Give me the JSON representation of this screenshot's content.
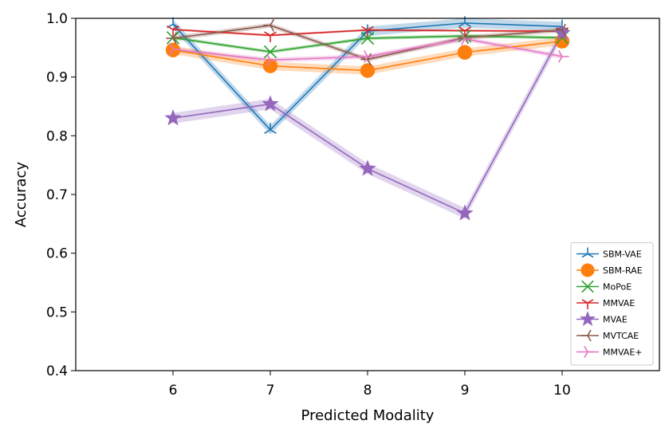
{
  "chart_data": {
    "type": "line",
    "title": "",
    "xlabel": "Predicted Modality",
    "ylabel": "Accuracy",
    "x": [
      6,
      7,
      8,
      9,
      10
    ],
    "x_tick_labels": [
      "6",
      "7",
      "8",
      "9",
      "10"
    ],
    "xlim": [
      5,
      11
    ],
    "ylim": [
      0.4,
      1.0
    ],
    "y_ticks": [
      0.4,
      0.5,
      0.6,
      0.7,
      0.8,
      0.9,
      1.0
    ],
    "y_tick_labels": [
      "0.4",
      "0.5",
      "0.6",
      "0.7",
      "0.8",
      "0.9",
      "1.0"
    ],
    "grid": false,
    "legend_position": "bottom-right",
    "series": [
      {
        "name": "SBM-VAE",
        "color": "#1f77b4",
        "marker": "tri-star",
        "values": [
          0.99,
          0.81,
          0.978,
          0.992,
          0.986
        ],
        "band": 0.008
      },
      {
        "name": "SBM-RAE",
        "color": "#ff7f0e",
        "marker": "circle",
        "values": [
          0.946,
          0.919,
          0.911,
          0.942,
          0.961
        ],
        "band": 0.007
      },
      {
        "name": "MoPoE",
        "color": "#2ca02c",
        "marker": "x",
        "values": [
          0.967,
          0.943,
          0.966,
          0.97,
          0.967
        ],
        "band": 0.003
      },
      {
        "name": "MMVAE",
        "color": "#d62728",
        "marker": "tri-down",
        "values": [
          0.981,
          0.971,
          0.98,
          0.979,
          0.978
        ],
        "band": 0.002
      },
      {
        "name": "MVAE",
        "color": "#9467bd",
        "marker": "star",
        "values": [
          0.83,
          0.854,
          0.744,
          0.668,
          0.975
        ],
        "band": 0.009
      },
      {
        "name": "MVTCAE",
        "color": "#8c564b",
        "marker": "tri-left",
        "values": [
          0.966,
          0.988,
          0.93,
          0.967,
          0.98
        ],
        "band": 0.004
      },
      {
        "name": "MMVAE+",
        "color": "#e377c2",
        "marker": "tri-right",
        "values": [
          0.947,
          0.929,
          0.935,
          0.965,
          0.935
        ],
        "band": 0.004
      }
    ]
  }
}
